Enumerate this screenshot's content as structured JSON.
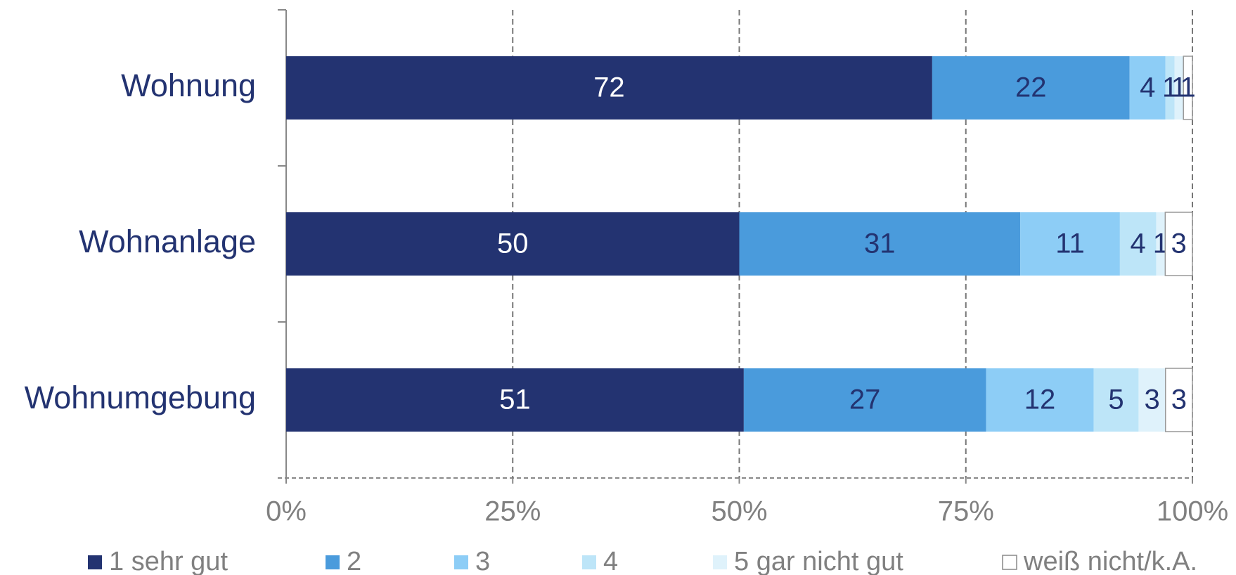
{
  "chart_data": {
    "type": "bar",
    "orientation": "horizontal",
    "stacking": "percent",
    "categories": [
      "Wohnung",
      "Wohnanlage",
      "Wohnumgebung"
    ],
    "series": [
      {
        "name": "1 sehr gut",
        "color": "#233371",
        "values": [
          72,
          50,
          51
        ]
      },
      {
        "name": "2",
        "color": "#4a9bdc",
        "values": [
          22,
          31,
          27
        ]
      },
      {
        "name": "3",
        "color": "#8dcdf6",
        "values": [
          4,
          11,
          12
        ]
      },
      {
        "name": "4",
        "color": "#bde5f8",
        "values": [
          1,
          4,
          5
        ]
      },
      {
        "name": "5 gar nicht gut",
        "color": "#dff2fb",
        "values": [
          1,
          1,
          3
        ]
      },
      {
        "name": "weiß nicht/k.A.",
        "color": "#ffffff",
        "values": [
          1,
          3,
          3
        ]
      }
    ],
    "xlim": [
      0,
      100
    ],
    "xticks": [
      {
        "value": 0,
        "label": "0%"
      },
      {
        "value": 25,
        "label": "25%"
      },
      {
        "value": 50,
        "label": "50%"
      },
      {
        "value": 75,
        "label": "75%"
      },
      {
        "value": 100,
        "label": "100%"
      }
    ],
    "grid": true,
    "legend": "bottom"
  }
}
